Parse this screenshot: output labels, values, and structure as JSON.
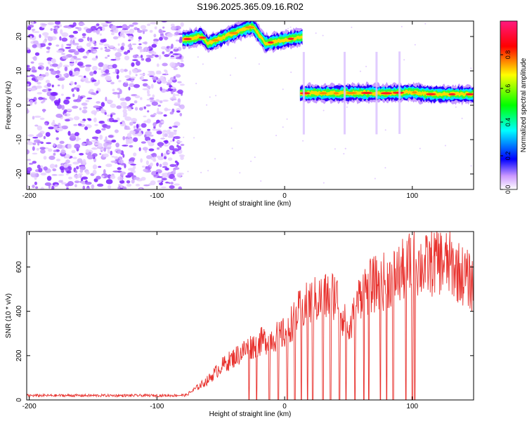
{
  "title": "S196.2025.365.09.16.R02",
  "colors": {
    "snr_line": "#e8322e",
    "axis": "#000000",
    "background": "#ffffff"
  },
  "chart_data": [
    {
      "type": "heatmap",
      "xlabel": "Height of straight line (km)",
      "ylabel": "Frequency (Hz)",
      "xlim": [
        -202,
        148
      ],
      "ylim": [
        -24.5,
        24.5
      ],
      "xticks": [
        "-200",
        "-100",
        "0",
        "100"
      ],
      "xtick_values": [
        -200,
        -100,
        0,
        100
      ],
      "yticks": [
        "20",
        "10",
        "0",
        "-10",
        "-20"
      ],
      "ytick_values": [
        20,
        10,
        0,
        -10,
        -20
      ],
      "grid": false,
      "colorbar": {
        "label": "Normalized spectral amplitude",
        "range": [
          0,
          1
        ],
        "ticks": [
          "0.0",
          "0.2",
          "0.4",
          "0.6",
          "0.8"
        ],
        "tick_values": [
          0,
          0.2,
          0.4,
          0.6,
          0.8
        ],
        "stops": [
          "#ffffff",
          "#9966ff",
          "#0000ff",
          "#00ffff",
          "#00ff00",
          "#ffff00",
          "#ff0000",
          "#ff1a7f"
        ]
      },
      "regions": [
        {
          "description_range_km": [
            -202,
            -80
          ],
          "kind": "noise",
          "amplitude": 0.15
        },
        {
          "description_range_km": [
            -80,
            14
          ],
          "kind": "tone",
          "freq_hz": [
            19,
            20,
            18,
            21,
            23,
            18,
            19,
            20
          ],
          "freq_at_km": [
            -80,
            -65,
            -60,
            -40,
            -25,
            -15,
            0,
            14
          ],
          "amplitude": 0.75
        },
        {
          "description_range_km": [
            12,
            148
          ],
          "kind": "tone",
          "freq_hz": [
            3.5,
            3.5,
            3.6,
            3.5,
            3.8,
            3.2,
            3.2
          ],
          "freq_at_km": [
            12,
            40,
            60,
            80,
            100,
            115,
            148
          ],
          "amplitude": 0.8
        }
      ]
    },
    {
      "type": "line",
      "xlabel": "Height of straight line (km)",
      "ylabel": "SNR (10 * v/v)",
      "xlim": [
        -202,
        148
      ],
      "ylim": [
        0,
        760
      ],
      "xticks": [
        "-200",
        "-100",
        "0",
        "100"
      ],
      "xtick_values": [
        -200,
        -100,
        0,
        100
      ],
      "yticks": [
        "0",
        "200",
        "400",
        "600"
      ],
      "ytick_values": [
        0,
        200,
        400,
        600
      ],
      "grid": false,
      "series": [
        {
          "x": [
            -202,
            -180,
            -150,
            -120,
            -90,
            -77,
            -70,
            -60,
            -50,
            -40,
            -30,
            -20,
            -10,
            0,
            10,
            20,
            30,
            40,
            50,
            60,
            70,
            80,
            90,
            100,
            110,
            120,
            130,
            140,
            148
          ],
          "values": [
            20,
            20,
            20,
            20,
            20,
            22,
            50,
            90,
            150,
            190,
            230,
            260,
            280,
            300,
            390,
            440,
            460,
            480,
            300,
            490,
            520,
            540,
            570,
            620,
            600,
            630,
            610,
            560,
            520
          ],
          "color": "#e8322e"
        }
      ]
    }
  ]
}
